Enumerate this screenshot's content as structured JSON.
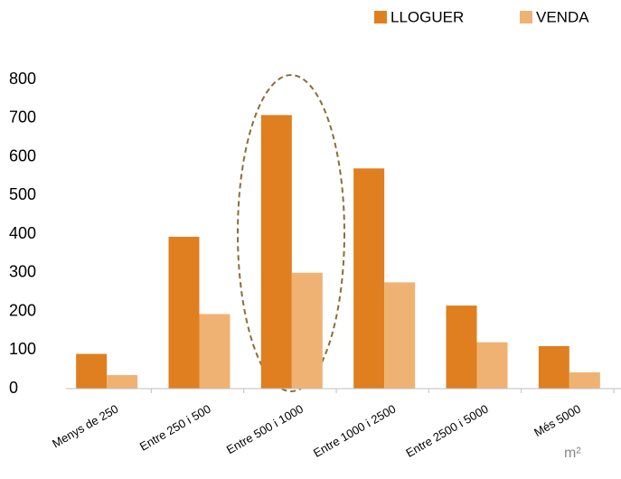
{
  "chart_data": {
    "type": "bar",
    "categories": [
      "Menys de 250",
      "Entre 250 i 500",
      "Entre 500 i 1000",
      "Entre 1000 i 2500",
      "Entre 2500 i 5000",
      "Més 5000"
    ],
    "series": [
      {
        "name": "LLOGUER",
        "color": "#df7f1f",
        "values": [
          90,
          393,
          708,
          570,
          215,
          110
        ]
      },
      {
        "name": "VENDA",
        "color": "#f0b272",
        "values": [
          35,
          193,
          300,
          275,
          120,
          42
        ]
      }
    ],
    "x_label": "m²",
    "ylim": [
      0,
      800
    ],
    "yticks": [
      0,
      100,
      200,
      300,
      400,
      500,
      600,
      700,
      800
    ],
    "legend": "top-right"
  }
}
